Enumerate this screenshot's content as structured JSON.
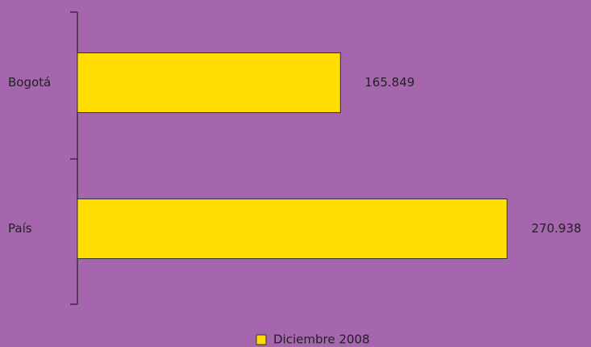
{
  "chart_data": {
    "type": "bar",
    "orientation": "horizontal",
    "categories": [
      "Bogotá",
      "País"
    ],
    "series": [
      {
        "name": "Diciembre 2008",
        "color": "#ffdd00",
        "values": [
          165849,
          270938
        ],
        "value_labels": [
          "165.849",
          "270.938"
        ]
      }
    ],
    "legend": "bottom"
  }
}
